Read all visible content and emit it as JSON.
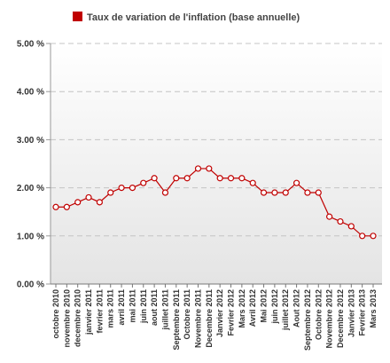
{
  "legend": {
    "label": "Taux de variation de l'inflation (base annuelle)",
    "color": "#c00000"
  },
  "chart_data": {
    "type": "line",
    "title": "",
    "xlabel": "",
    "ylabel": "",
    "ylim": [
      0,
      5
    ],
    "grid": true,
    "legend_placement": "top",
    "y_tick_labels": [
      "0.00 %",
      "1.00 %",
      "2.00 %",
      "3.00 %",
      "4.00 %",
      "5.00 %"
    ],
    "y_tick_values": [
      0,
      1,
      2,
      3,
      4,
      5
    ],
    "categories": [
      "octobre 2010",
      "novembre 2010",
      "decembre 2010",
      "janvier 2011",
      "fevrier 2011",
      "mars 2011",
      "avril 2011",
      "mai 2011",
      "juin 2011",
      "aout 2011",
      "juillet 2011",
      "Septembre 2011",
      "Octobre 2011",
      "Novembre 2011",
      "Decembre 2011",
      "Janvier 2012",
      "Fevrier 2012",
      "Mars 2012",
      "Avril 2012",
      "Mai 2012",
      "juin 2012",
      "juillet 2012",
      "Aout 2012",
      "Septembre 2012",
      "Octobre 2012",
      "Novembre 2012",
      "Decembre 2012",
      "Janvier 2013",
      "Fevrier 2013",
      "Mars 2013"
    ],
    "series": [
      {
        "name": "Taux de variation de l'inflation (base annuelle)",
        "color": "#c00000",
        "values": [
          1.6,
          1.6,
          1.7,
          1.8,
          1.7,
          1.9,
          2.0,
          2.0,
          2.1,
          2.2,
          1.9,
          2.2,
          2.2,
          2.4,
          2.4,
          2.2,
          2.2,
          2.2,
          2.1,
          1.9,
          1.9,
          1.9,
          2.1,
          1.9,
          1.9,
          1.4,
          1.3,
          1.2,
          1.0,
          1.0
        ]
      }
    ]
  }
}
